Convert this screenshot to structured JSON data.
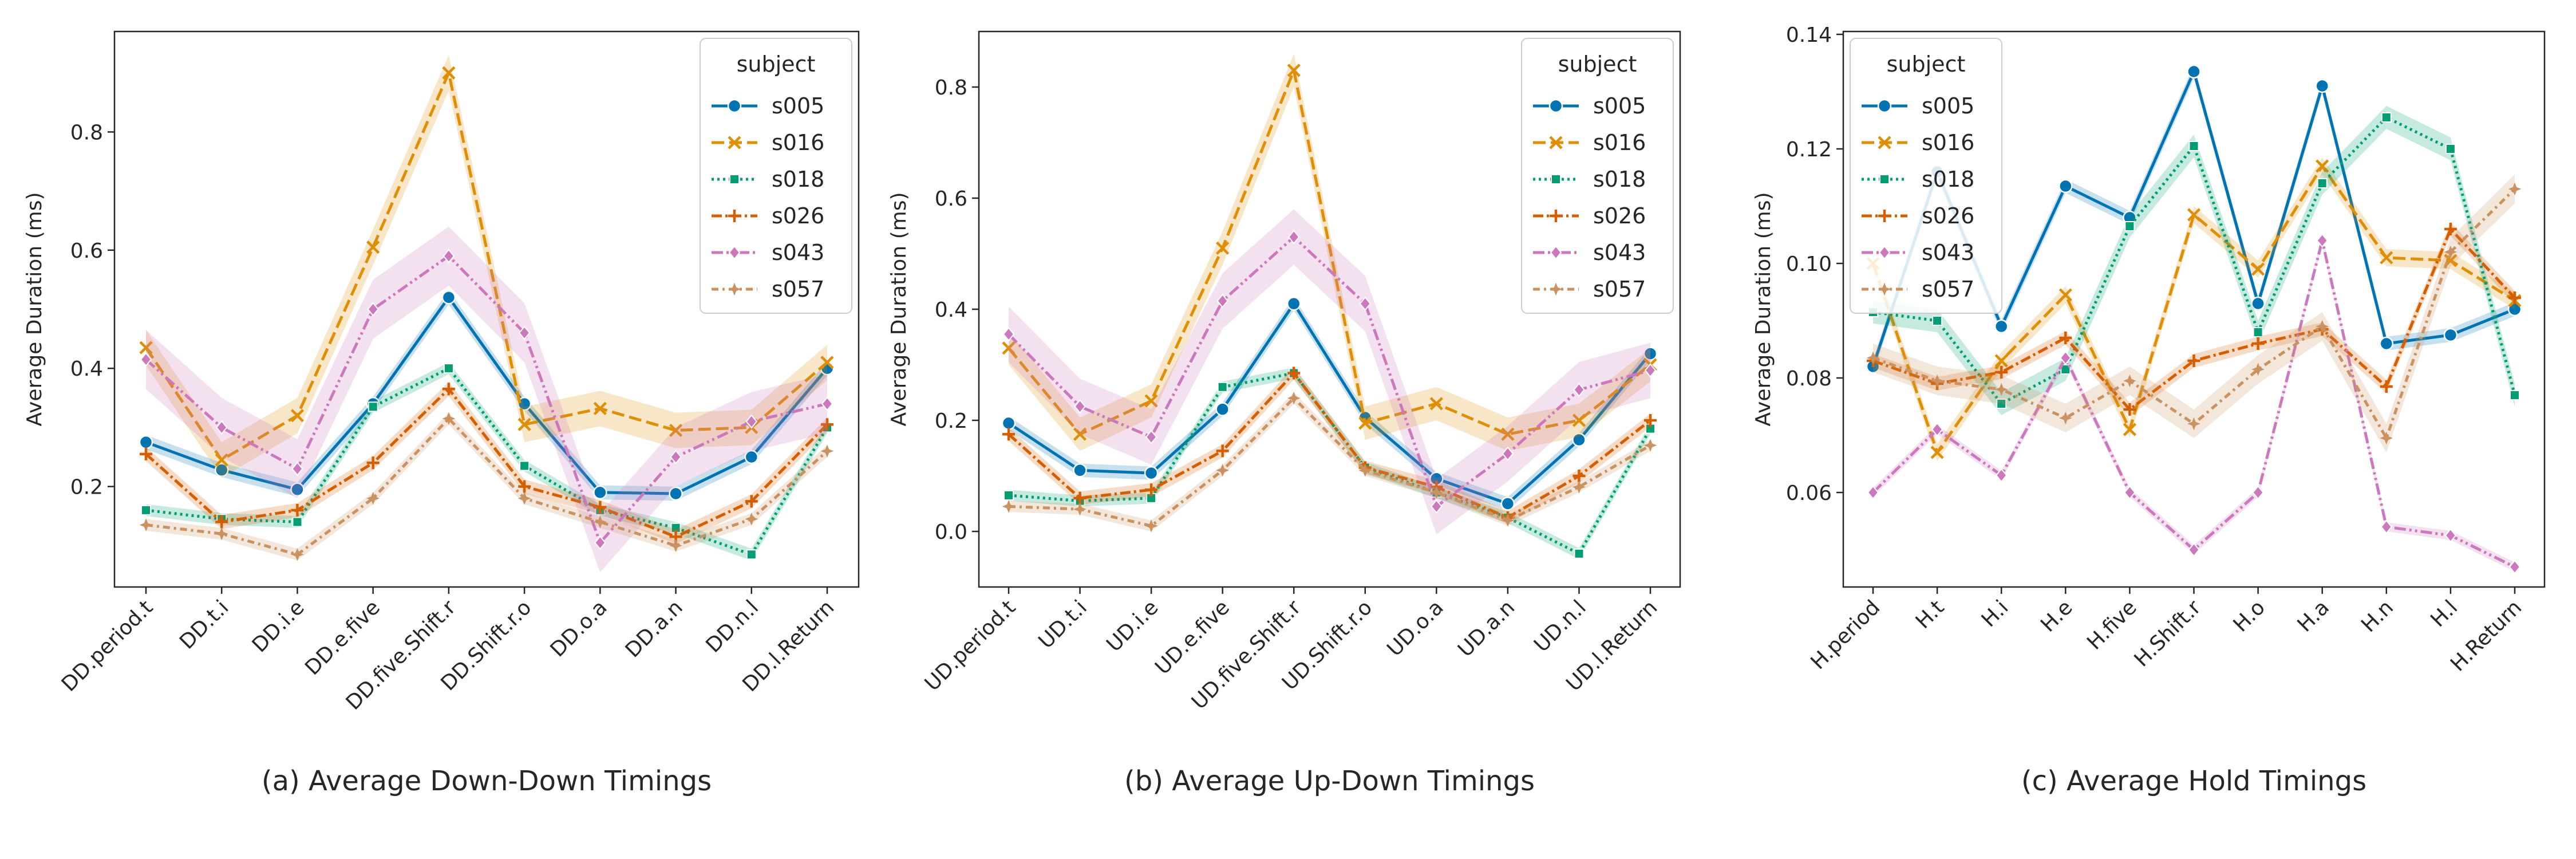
{
  "colors": {
    "s005": "#0173b2",
    "s016": "#de8f05",
    "s018": "#029e73",
    "s026": "#d55e00",
    "s043": "#cc78bc",
    "s057": "#ca9161",
    "axis": "#262626"
  },
  "chart_data": [
    {
      "type": "line",
      "caption": "(a) Average Down-Down Timings",
      "ylabel": "Average Duration (ms)",
      "xlabel": "",
      "categories": [
        "DD.period.t",
        "DD.t.i",
        "DD.i.e",
        "DD.e.five",
        "DD.five.Shift.r",
        "DD.Shift.r.o",
        "DD.o.a",
        "DD.a.n",
        "DD.n.l",
        "DD.l.Return"
      ],
      "ylim": [
        0.03,
        0.97
      ],
      "yticks": [
        0.2,
        0.4,
        0.6,
        0.8
      ],
      "ytick_labels": [
        "0.2",
        "0.4",
        "0.6",
        "0.8"
      ],
      "legend": {
        "title": "subject",
        "position": "top-right"
      },
      "grid": false,
      "series": [
        {
          "name": "s005",
          "values": [
            0.275,
            0.228,
            0.195,
            0.34,
            0.52,
            0.34,
            0.19,
            0.188,
            0.25,
            0.4
          ],
          "ci": 0.012
        },
        {
          "name": "s016",
          "values": [
            0.435,
            0.245,
            0.32,
            0.605,
            0.9,
            0.305,
            0.332,
            0.295,
            0.3,
            0.41
          ],
          "ci": 0.03
        },
        {
          "name": "s018",
          "values": [
            0.16,
            0.145,
            0.14,
            0.335,
            0.4,
            0.235,
            0.16,
            0.13,
            0.085,
            0.3
          ],
          "ci": 0.01
        },
        {
          "name": "s026",
          "values": [
            0.255,
            0.14,
            0.16,
            0.24,
            0.365,
            0.2,
            0.165,
            0.115,
            0.175,
            0.305
          ],
          "ci": 0.012
        },
        {
          "name": "s043",
          "values": [
            0.415,
            0.3,
            0.23,
            0.5,
            0.59,
            0.46,
            0.105,
            0.25,
            0.31,
            0.34
          ],
          "ci": 0.05
        },
        {
          "name": "s057",
          "values": [
            0.135,
            0.12,
            0.085,
            0.18,
            0.315,
            0.18,
            0.14,
            0.1,
            0.145,
            0.26
          ],
          "ci": 0.01
        }
      ]
    },
    {
      "type": "line",
      "caption": "(b) Average Up-Down Timings",
      "ylabel": "Average Duration (ms)",
      "xlabel": "",
      "categories": [
        "UD.period.t",
        "UD.t.i",
        "UD.i.e",
        "UD.e.five",
        "UD.five.Shift.r",
        "UD.Shift.r.o",
        "UD.o.a",
        "UD.a.n",
        "UD.n.l",
        "UD.l.Return"
      ],
      "ylim": [
        -0.1,
        0.9
      ],
      "yticks": [
        0.0,
        0.2,
        0.4,
        0.6,
        0.8
      ],
      "ytick_labels": [
        "0.0",
        "0.2",
        "0.4",
        "0.6",
        "0.8"
      ],
      "legend": {
        "title": "subject",
        "position": "top-right"
      },
      "grid": false,
      "series": [
        {
          "name": "s005",
          "values": [
            0.195,
            0.11,
            0.105,
            0.22,
            0.41,
            0.205,
            0.095,
            0.05,
            0.165,
            0.32
          ],
          "ci": 0.012
        },
        {
          "name": "s016",
          "values": [
            0.33,
            0.175,
            0.235,
            0.51,
            0.83,
            0.195,
            0.23,
            0.175,
            0.2,
            0.3
          ],
          "ci": 0.03
        },
        {
          "name": "s018",
          "values": [
            0.065,
            0.055,
            0.06,
            0.26,
            0.285,
            0.115,
            0.07,
            0.025,
            -0.04,
            0.185
          ],
          "ci": 0.01
        },
        {
          "name": "s026",
          "values": [
            0.175,
            0.06,
            0.075,
            0.145,
            0.285,
            0.115,
            0.08,
            0.025,
            0.1,
            0.2
          ],
          "ci": 0.012
        },
        {
          "name": "s043",
          "values": [
            0.355,
            0.225,
            0.17,
            0.415,
            0.53,
            0.41,
            0.045,
            0.14,
            0.255,
            0.29
          ],
          "ci": 0.05
        },
        {
          "name": "s057",
          "values": [
            0.045,
            0.04,
            0.01,
            0.11,
            0.24,
            0.11,
            0.07,
            0.02,
            0.08,
            0.155
          ],
          "ci": 0.01
        }
      ]
    },
    {
      "type": "line",
      "caption": "(c) Average Hold Timings",
      "ylabel": "Average Duration (ms)",
      "xlabel": "",
      "categories": [
        "H.period",
        "H.t",
        "H.i",
        "H.e",
        "H.five",
        "H.Shift.r",
        "H.o",
        "H.a",
        "H.n",
        "H.l",
        "H.Return"
      ],
      "ylim": [
        0.0435,
        0.1405
      ],
      "yticks": [
        0.06,
        0.08,
        0.1,
        0.12,
        0.14
      ],
      "ytick_labels": [
        "0.06",
        "0.08",
        "0.10",
        "0.12",
        "0.14"
      ],
      "legend": {
        "title": "subject",
        "position": "top-left"
      },
      "grid": false,
      "series": [
        {
          "name": "s005",
          "values": [
            0.082,
            0.116,
            0.089,
            0.1135,
            0.108,
            0.1335,
            0.093,
            0.131,
            0.086,
            0.0875,
            0.092
          ],
          "ci": 0.0012
        },
        {
          "name": "s016",
          "values": [
            0.1,
            0.067,
            0.083,
            0.0945,
            0.071,
            0.1085,
            0.099,
            0.117,
            0.101,
            0.1005,
            0.0935
          ],
          "ci": 0.0015
        },
        {
          "name": "s018",
          "values": [
            0.0915,
            0.09,
            0.0755,
            0.0815,
            0.1065,
            0.1205,
            0.088,
            0.114,
            0.1255,
            0.12,
            0.077
          ],
          "ci": 0.002
        },
        {
          "name": "s026",
          "values": [
            0.083,
            0.079,
            0.081,
            0.087,
            0.0745,
            0.083,
            0.086,
            0.0885,
            0.0785,
            0.106,
            0.094
          ],
          "ci": 0.0012
        },
        {
          "name": "s043",
          "values": [
            0.06,
            0.071,
            0.063,
            0.0835,
            0.06,
            0.05,
            0.06,
            0.104,
            0.054,
            0.0525,
            0.047
          ],
          "ci": 0.0008
        },
        {
          "name": "s057",
          "values": [
            0.0835,
            0.0795,
            0.078,
            0.073,
            0.0795,
            0.072,
            0.0815,
            0.089,
            0.0695,
            0.102,
            0.113
          ],
          "ci": 0.0025
        }
      ]
    }
  ]
}
